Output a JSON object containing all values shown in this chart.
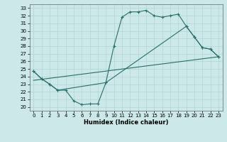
{
  "xlabel": "Humidex (Indice chaleur)",
  "background_color": "#cce8e8",
  "line_color": "#2a6e6a",
  "xlim": [
    -0.5,
    23.5
  ],
  "ylim": [
    19.5,
    33.5
  ],
  "xticks": [
    0,
    1,
    2,
    3,
    4,
    5,
    6,
    7,
    8,
    9,
    10,
    11,
    12,
    13,
    14,
    15,
    16,
    17,
    18,
    19,
    20,
    21,
    22,
    23
  ],
  "yticks": [
    20,
    21,
    22,
    23,
    24,
    25,
    26,
    27,
    28,
    29,
    30,
    31,
    32,
    33
  ],
  "line1_x": [
    0,
    1,
    2,
    3,
    4,
    5,
    6,
    7,
    8,
    9,
    10,
    11,
    12,
    13,
    14,
    15,
    16,
    17,
    18,
    19,
    20,
    21,
    22,
    23
  ],
  "line1_y": [
    24.7,
    23.7,
    23.0,
    22.2,
    22.2,
    20.8,
    20.3,
    20.4,
    20.4,
    23.2,
    28.0,
    31.8,
    32.5,
    32.5,
    32.7,
    32.0,
    31.8,
    32.0,
    32.2,
    30.6,
    29.2,
    27.8,
    27.6,
    26.6
  ],
  "line2_x": [
    0,
    23
  ],
  "line2_y": [
    23.5,
    26.6
  ],
  "line3_x": [
    0,
    1,
    2,
    3,
    9,
    19,
    20,
    21,
    22,
    23
  ],
  "line3_y": [
    24.7,
    23.7,
    23.0,
    22.2,
    23.2,
    30.6,
    29.2,
    27.8,
    27.6,
    26.6
  ]
}
